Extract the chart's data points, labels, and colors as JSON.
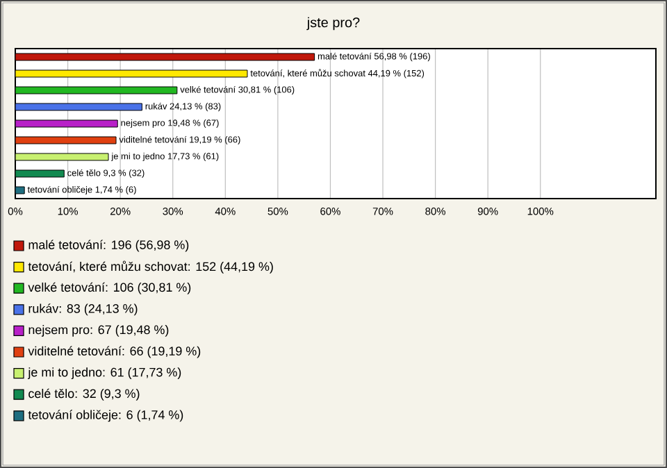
{
  "chart_data": {
    "type": "bar",
    "orientation": "horizontal",
    "title": "jste pro?",
    "categories": [
      null,
      null,
      null,
      null,
      null,
      null,
      null,
      null,
      null
    ],
    "series": [
      {
        "name": "malé tetování: 196 (56,98 %)",
        "color": "#c0180c",
        "values": [
          56.98,
          null,
          null,
          null,
          null,
          null,
          null,
          null,
          null
        ],
        "value_labels": [
          "malé tetování 56,98 % (196)",
          null,
          null,
          null,
          null,
          null,
          null,
          null,
          null
        ]
      },
      {
        "name": "tetování, které můžu schovat: 152 (44,19 %)",
        "color": "#ffe800",
        "values": [
          null,
          44.19,
          null,
          null,
          null,
          null,
          null,
          null,
          null
        ],
        "value_labels": [
          null,
          "tetování, které můžu schovat 44,19 % (152)",
          null,
          null,
          null,
          null,
          null,
          null,
          null
        ]
      },
      {
        "name": "velké tetování: 106 (30,81 %)",
        "color": "#22b822",
        "values": [
          null,
          null,
          30.81,
          null,
          null,
          null,
          null,
          null,
          null
        ],
        "value_labels": [
          null,
          null,
          "velké tetování 30,81 % (106)",
          null,
          null,
          null,
          null,
          null,
          null
        ]
      },
      {
        "name": "rukáv: 83 (24,13 %)",
        "color": "#4a72e8",
        "values": [
          null,
          null,
          null,
          24.13,
          null,
          null,
          null,
          null,
          null
        ],
        "value_labels": [
          null,
          null,
          null,
          "rukáv 24,13 % (83)",
          null,
          null,
          null,
          null,
          null
        ]
      },
      {
        "name": "nejsem pro: 67 (19,48 %)",
        "color": "#b820c8",
        "values": [
          null,
          null,
          null,
          null,
          19.48,
          null,
          null,
          null,
          null
        ],
        "value_labels": [
          null,
          null,
          null,
          null,
          "nejsem pro 19,48 % (67)",
          null,
          null,
          null,
          null
        ]
      },
      {
        "name": "viditelné tetování: 66 (19,19 %)",
        "color": "#e04010",
        "values": [
          null,
          null,
          null,
          null,
          null,
          19.19,
          null,
          null,
          null
        ],
        "value_labels": [
          null,
          null,
          null,
          null,
          null,
          "viditelné tetování 19,19 % (66)",
          null,
          null,
          null
        ]
      },
      {
        "name": "je mi to jedno: 61 (17,73 %)",
        "color": "#c8f070",
        "values": [
          null,
          null,
          null,
          null,
          null,
          null,
          17.73,
          null,
          null
        ],
        "value_labels": [
          null,
          null,
          null,
          null,
          null,
          null,
          "je mi to jedno 17,73 % (61)",
          null,
          null
        ]
      },
      {
        "name": "celé tělo: 32 (9,3 %)",
        "color": "#128a50",
        "values": [
          null,
          null,
          null,
          null,
          null,
          null,
          null,
          9.3,
          null
        ],
        "value_labels": [
          null,
          null,
          null,
          null,
          null,
          null,
          null,
          "celé tělo 9,3 % (32)",
          null
        ]
      },
      {
        "name": "tetování obličeje: 6 (1,74 %)",
        "color": "#1e6e80",
        "values": [
          null,
          null,
          null,
          null,
          null,
          null,
          null,
          null,
          1.74
        ],
        "value_labels": [
          null,
          null,
          null,
          null,
          null,
          null,
          null,
          null,
          "tetování obličeje 1,74 % (6)"
        ]
      }
    ],
    "xlim": [
      0,
      122
    ],
    "xticks": [
      {
        "value": 0,
        "label": "0%"
      },
      {
        "value": 10,
        "label": "10%"
      },
      {
        "value": 20,
        "label": "20%"
      },
      {
        "value": 30,
        "label": "30%"
      },
      {
        "value": 40,
        "label": "40%"
      },
      {
        "value": 50,
        "label": "50%"
      },
      {
        "value": 60,
        "label": "60%"
      },
      {
        "value": 70,
        "label": "70%"
      },
      {
        "value": 80,
        "label": "80%"
      },
      {
        "value": 90,
        "label": "90%"
      },
      {
        "value": 100,
        "label": "100%"
      }
    ],
    "grid": "x",
    "legend": "bottom"
  }
}
